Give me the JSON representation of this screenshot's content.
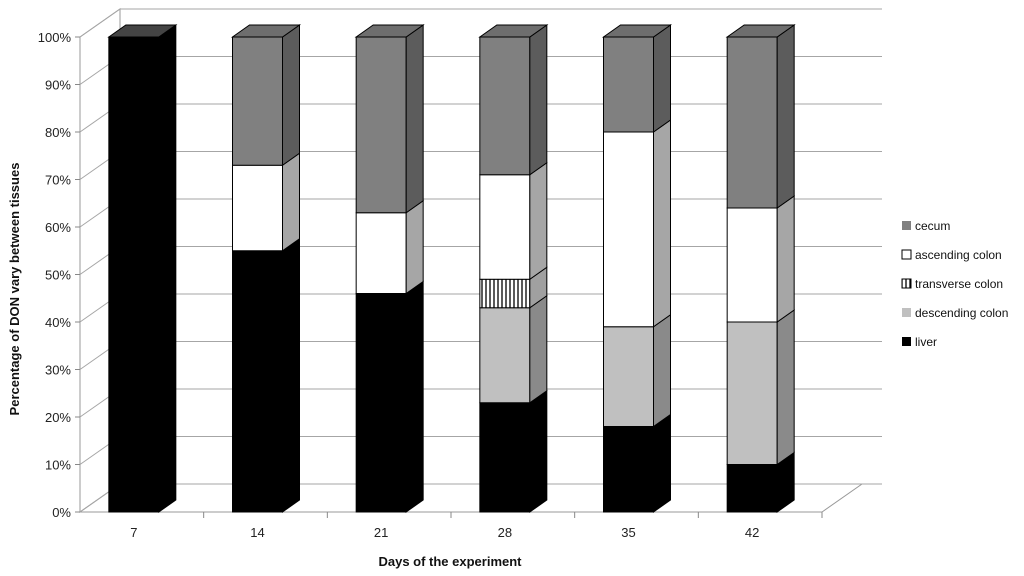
{
  "chart_data": {
    "type": "bar",
    "stacked": true,
    "three_d": true,
    "categories": [
      "7",
      "14",
      "21",
      "28",
      "35",
      "42"
    ],
    "series": [
      {
        "name": "liver",
        "values": [
          100,
          55,
          46,
          23,
          18,
          10
        ]
      },
      {
        "name": "descending colon",
        "values": [
          0,
          0,
          0,
          20,
          21,
          30
        ]
      },
      {
        "name": "transverse colon",
        "values": [
          0,
          0,
          0,
          6,
          0,
          0
        ]
      },
      {
        "name": "ascending colon",
        "values": [
          0,
          18,
          17,
          22,
          41,
          24
        ]
      },
      {
        "name": "cecum",
        "values": [
          0,
          27,
          37,
          29,
          20,
          36
        ]
      }
    ],
    "legend_order": [
      "cecum",
      "ascending colon",
      "transverse colon",
      "descending colon",
      "liver"
    ],
    "colors": {
      "liver": "#000000",
      "descending colon": "#c0c0c0",
      "transverse colon": "#ffffff",
      "ascending colon": "#ffffff",
      "cecum": "#808080"
    },
    "transverse_pattern": "vertical-stripes",
    "xlabel": "Days of the experiment",
    "ylabel": "Percentage of DON vary between tissues",
    "ylim": [
      0,
      100
    ],
    "yticks": [
      "0%",
      "10%",
      "20%",
      "30%",
      "40%",
      "50%",
      "60%",
      "70%",
      "80%",
      "90%",
      "100%"
    ],
    "grid": true,
    "legend_position": "right"
  }
}
